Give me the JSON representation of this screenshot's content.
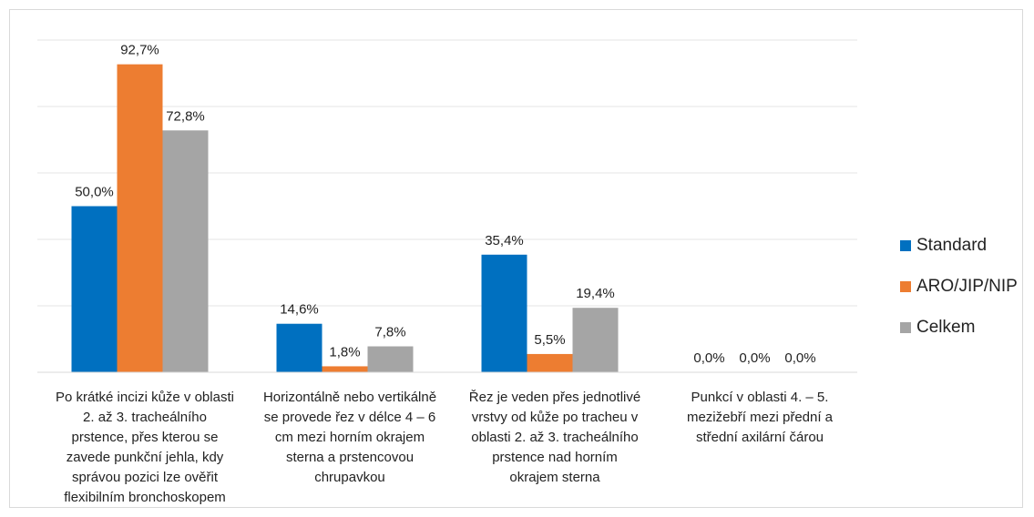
{
  "chart_data": {
    "type": "bar",
    "categories": [
      "Po krátké incizi kůže v oblasti\n2. až 3. tracheálního\nprstence, přes kterou se\nzavede punkční jehla, kdy\nsprávou pozici lze ověřit\nflexibilním bronchoskopem",
      "Horizontálně nebo vertikálně\nse provede řez v délce 4 – 6\ncm mezi horním okrajem\nsterna a prstencovou\nchrupavkou",
      "Řez je veden přes jednotlivé\nvrstvy od kůže po tracheu v\noblasti 2. až 3. tracheálního\nprstence nad horním\nokrajem sterna",
      "Punkcí v oblasti 4. – 5.\nmezižebří mezi přední a\nstřední axilární čárou"
    ],
    "series": [
      {
        "name": "Standard",
        "color": "#0070c0",
        "values": [
          50.0,
          14.6,
          35.4,
          0.0
        ],
        "labels": [
          "50,0%",
          "14,6%",
          "35,4%",
          "0,0%"
        ]
      },
      {
        "name": "ARO/JIP/NIP",
        "color": "#ed7d31",
        "values": [
          92.7,
          1.8,
          5.5,
          0.0
        ],
        "labels": [
          "92,7%",
          "1,8%",
          "5,5%",
          "0,0%"
        ]
      },
      {
        "name": "Celkem",
        "color": "#a5a5a5",
        "values": [
          72.8,
          7.8,
          19.4,
          0.0
        ],
        "labels": [
          "72,8%",
          "7,8%",
          "19,4%",
          "0,0%"
        ]
      }
    ],
    "ylim": [
      0,
      100
    ],
    "grid": true,
    "legend_position": "right",
    "title": "",
    "xlabel": "",
    "ylabel": ""
  }
}
